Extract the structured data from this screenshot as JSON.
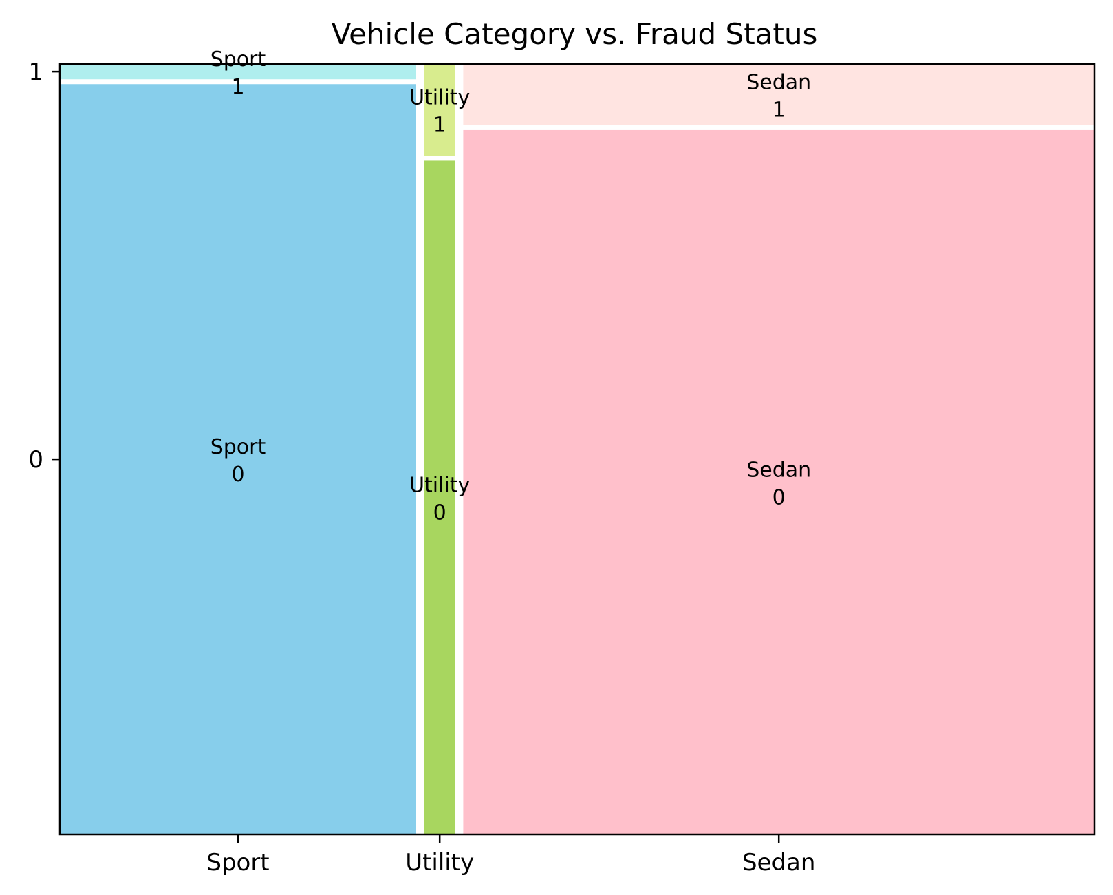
{
  "chart_data": {
    "type": "mosaic",
    "title": "Vehicle Category vs. Fraud Status",
    "xlabel": "",
    "ylabel": "",
    "categories": [
      "Sport",
      "Utility",
      "Sedan"
    ],
    "category_share": [
      0.35,
      0.03,
      0.62
    ],
    "segments": [
      "0",
      "1"
    ],
    "y_tick_labels": [
      "0",
      "1"
    ],
    "segment_share": {
      "Sport": {
        "0": 0.98,
        "1": 0.02
      },
      "Utility": {
        "0": 0.88,
        "1": 0.12
      },
      "Sedan": {
        "0": 0.92,
        "1": 0.08
      }
    },
    "colors": {
      "Sport": {
        "0": "#87ceeb",
        "1": "#afeeee"
      },
      "Utility": {
        "0": "#a8d65f",
        "1": "#d8ec8e"
      },
      "Sedan": {
        "0": "#ffc0cb",
        "1": "#ffe4e1"
      }
    },
    "grid": false,
    "legend": "none"
  }
}
